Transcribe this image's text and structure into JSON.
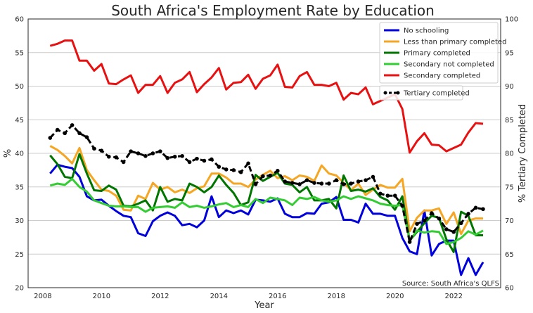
{
  "chart_data": {
    "type": "line",
    "title": "South Africa's Employment Rate by Education",
    "xlabel": "Year",
    "ylabel": "%",
    "ylabel_right": "% Tertiary Completed",
    "source": "Source: South Africa's QLFS",
    "xlim": [
      2007.5,
      2023.6
    ],
    "ylim": [
      20,
      60
    ],
    "ylim_right": [
      60,
      100
    ],
    "xticks": [
      "2008",
      "2010",
      "2012",
      "2014",
      "2016",
      "2018",
      "2020",
      "2022"
    ],
    "yticks": [
      "20",
      "25",
      "30",
      "35",
      "40",
      "45",
      "50",
      "55",
      "60"
    ],
    "yticks_right": [
      "60",
      "65",
      "70",
      "75",
      "80",
      "85",
      "90",
      "95",
      "100"
    ],
    "x": [
      2008.25,
      2008.5,
      2008.75,
      2009,
      2009.25,
      2009.5,
      2009.75,
      2010,
      2010.25,
      2010.5,
      2010.75,
      2011,
      2011.25,
      2011.5,
      2011.75,
      2012,
      2012.25,
      2012.5,
      2012.75,
      2013,
      2013.25,
      2013.5,
      2013.75,
      2014,
      2014.25,
      2014.5,
      2014.75,
      2015,
      2015.25,
      2015.5,
      2015.75,
      2016,
      2016.25,
      2016.5,
      2016.75,
      2017,
      2017.25,
      2017.5,
      2017.75,
      2018,
      2018.25,
      2018.5,
      2018.75,
      2019,
      2019.25,
      2019.5,
      2019.75,
      2020,
      2020.25,
      2020.5,
      2020.75,
      2021,
      2021.25,
      2021.5,
      2021.75,
      2022,
      2022.25,
      2022.5,
      2022.75,
      2023
    ],
    "series": [
      {
        "name": "No schooling",
        "color": "#0000dd",
        "axis": "left",
        "width": 2.5,
        "dotted": false,
        "values": [
          37.0,
          38.3,
          38.0,
          37.8,
          36.5,
          33.6,
          33.0,
          33.1,
          32.2,
          31.4,
          30.7,
          30.5,
          28.1,
          27.7,
          29.9,
          30.7,
          31.2,
          30.7,
          29.3,
          29.5,
          29.0,
          30.0,
          33.6,
          30.5,
          31.5,
          31.1,
          31.5,
          30.9,
          33.1,
          33.0,
          32.8,
          33.3,
          31.0,
          30.5,
          30.5,
          31.1,
          31.0,
          32.5,
          32.7,
          33.5,
          30.1,
          30.1,
          29.7,
          32.5,
          31.0,
          31.0,
          30.7,
          30.7,
          27.4,
          25.4,
          25.0,
          31.5,
          24.8,
          26.5,
          27.0,
          27.0,
          21.9,
          24.4,
          21.9,
          23.8
        ]
      },
      {
        "name": "Less than primary completed",
        "color": "#f5a623",
        "axis": "left",
        "width": 2.5,
        "dotted": false,
        "values": [
          41.1,
          40.5,
          39.6,
          38.5,
          40.8,
          37.5,
          36.0,
          34.6,
          34.4,
          33.7,
          31.6,
          31.5,
          33.7,
          33.2,
          35.6,
          34.6,
          35.0,
          34.2,
          34.6,
          34.1,
          34.8,
          35.1,
          37.0,
          37.0,
          36.4,
          35.5,
          35.5,
          35.0,
          36.1,
          36.8,
          37.4,
          36.3,
          36.6,
          36.0,
          36.7,
          36.5,
          35.9,
          38.2,
          37.0,
          36.7,
          35.6,
          34.5,
          35.5,
          33.8,
          34.6,
          35.3,
          34.9,
          34.9,
          36.2,
          28.4,
          30.4,
          31.5,
          31.5,
          31.8,
          29.5,
          31.2,
          28.0,
          30.0,
          30.3,
          30.3
        ]
      },
      {
        "name": "Primary completed",
        "color": "#007500",
        "axis": "left",
        "width": 2.5,
        "dotted": false,
        "values": [
          39.7,
          38.4,
          36.5,
          36.3,
          39.9,
          37.0,
          34.5,
          34.4,
          35.2,
          34.6,
          32.2,
          32.1,
          32.5,
          33.0,
          31.5,
          35.0,
          32.8,
          33.2,
          33.0,
          35.5,
          35.0,
          34.2,
          35.0,
          36.7,
          35.3,
          34.1,
          32.3,
          32.7,
          36.8,
          35.9,
          36.5,
          37.1,
          35.5,
          35.3,
          34.2,
          35.0,
          33.0,
          33.0,
          33.2,
          31.8,
          36.7,
          34.4,
          34.6,
          34.3,
          34.8,
          33.5,
          33.0,
          31.6,
          33.6,
          27.0,
          28.3,
          29.6,
          30.7,
          30.4,
          27.2,
          25.3,
          31.3,
          30.7,
          27.8,
          27.8
        ]
      },
      {
        "name": "Secondary not completed",
        "color": "#33cc33",
        "axis": "left",
        "width": 2.5,
        "dotted": false,
        "values": [
          35.2,
          35.5,
          35.3,
          36.2,
          35.0,
          34.3,
          33.0,
          32.6,
          32.2,
          32.1,
          32.1,
          32.0,
          32.0,
          31.3,
          31.9,
          32.0,
          32.1,
          31.9,
          32.7,
          32.0,
          32.2,
          31.9,
          32.1,
          32.4,
          32.6,
          32.0,
          32.3,
          32.0,
          33.2,
          32.6,
          33.4,
          33.2,
          33.0,
          32.3,
          33.4,
          33.2,
          33.5,
          33.0,
          32.8,
          33.0,
          33.6,
          33.2,
          33.6,
          33.3,
          33.0,
          32.5,
          32.3,
          32.2,
          32.3,
          27.0,
          28.5,
          28.2,
          28.4,
          28.3,
          26.5,
          26.8,
          27.4,
          28.4,
          27.9,
          28.5
        ]
      },
      {
        "name": "Secondary completed",
        "color": "#e81010",
        "axis": "left",
        "width": 2.5,
        "dotted": false,
        "values": [
          56.0,
          56.3,
          56.8,
          56.8,
          53.8,
          53.8,
          52.3,
          53.3,
          50.4,
          50.3,
          51.0,
          51.6,
          49.0,
          50.2,
          50.2,
          51.5,
          49.0,
          50.5,
          51.0,
          52.1,
          49.1,
          50.3,
          51.3,
          52.7,
          49.5,
          50.5,
          50.6,
          51.7,
          49.6,
          51.1,
          51.6,
          53.2,
          49.9,
          49.8,
          51.5,
          52.1,
          50.2,
          50.2,
          50.0,
          50.5,
          48.0,
          49.0,
          48.8,
          49.8,
          47.3,
          47.8,
          48.3,
          48.8,
          46.6,
          40.1,
          41.8,
          43.0,
          41.3,
          41.2,
          40.3,
          40.8,
          41.3,
          43.1,
          44.5,
          44.4
        ]
      },
      {
        "name": "Tertiary completed",
        "color": "#000000",
        "axis": "right",
        "width": 2.5,
        "dotted": true,
        "values": [
          82.3,
          83.5,
          83.0,
          84.2,
          83.0,
          82.4,
          80.7,
          80.4,
          79.5,
          79.4,
          78.7,
          80.3,
          80.0,
          79.6,
          80.0,
          80.3,
          79.3,
          79.5,
          79.6,
          78.7,
          79.2,
          78.9,
          79.1,
          78.0,
          77.6,
          77.5,
          77.2,
          78.5,
          75.4,
          76.6,
          76.7,
          77.4,
          75.8,
          75.6,
          75.4,
          76.0,
          75.6,
          75.5,
          75.5,
          76.0,
          75.4,
          75.5,
          75.8,
          76.0,
          76.5,
          74.0,
          73.7,
          73.7,
          72.2,
          66.8,
          69.5,
          70.0,
          71.1,
          70.3,
          68.7,
          68.3,
          69.6,
          71.0,
          71.9,
          71.7
        ]
      }
    ],
    "legend_position": "top-right",
    "grid": "horizontal"
  }
}
